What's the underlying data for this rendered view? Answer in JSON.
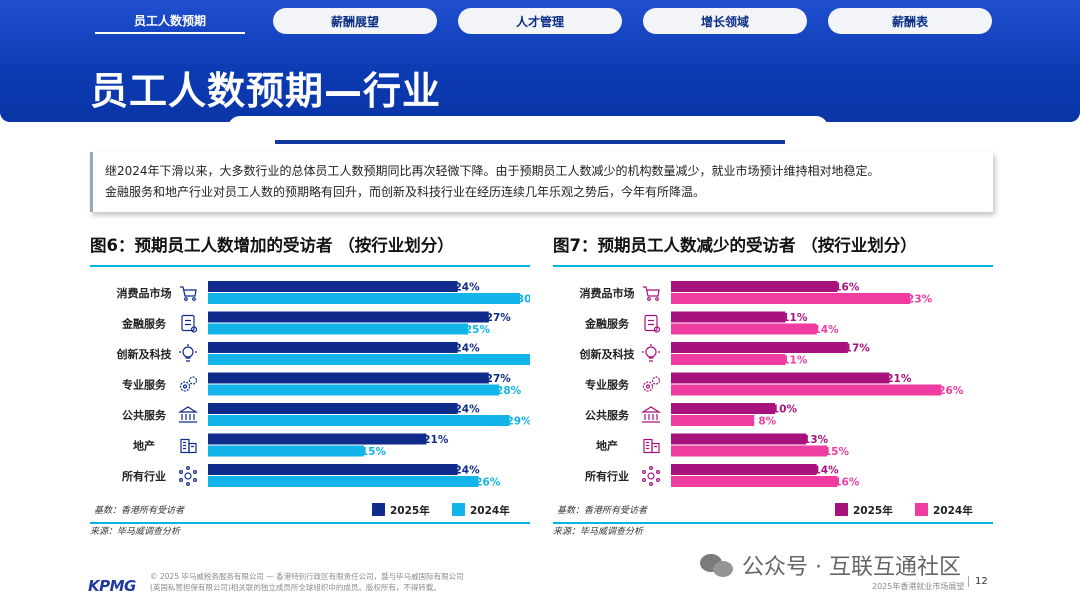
{
  "nav": {
    "tabs": [
      {
        "label": "员工人数预期"
      },
      {
        "label": "薪酬展望"
      },
      {
        "label": "人才管理"
      },
      {
        "label": "增长领域"
      },
      {
        "label": "薪酬表"
      }
    ]
  },
  "page": {
    "title": "员工人数预期—行业",
    "intro_line1": "继2024年下滑以来，大多数行业的总体员工人数预期同比再次轻微下降。由于预期员工人数减少的机构数量减少，就业市场预计维持相对地稳定。",
    "intro_line2": "金融服务和地产行业对员工人数的预期略有回升，而创新及科技行业在经历连续几年乐观之势后，今年有所降温。"
  },
  "chart_data": [
    {
      "type": "bar",
      "title": "图6：预期员工人数增加的受访者 （按行业划分）",
      "categories": [
        "消费品市场",
        "金融服务",
        "创新及科技",
        "专业服务",
        "公共服务",
        "地产",
        "所有行业"
      ],
      "icons": [
        "cart-icon",
        "finance-icon",
        "bulb-icon",
        "gears-icon",
        "bank-icon",
        "building-icon",
        "network-icon"
      ],
      "series": [
        {
          "name": "2025年",
          "values": [
            24,
            27,
            24,
            27,
            24,
            21,
            24
          ],
          "color": "#0f2b8c"
        },
        {
          "name": "2024年",
          "values": [
            30,
            25,
            32,
            28,
            29,
            15,
            26
          ],
          "color": "#12b4ea"
        }
      ],
      "base_note": "基数：香港所有受访者",
      "source": "来源：毕马威调查分析",
      "xlim": [
        0,
        32
      ]
    },
    {
      "type": "bar",
      "title": "图7：预期员工人数减少的受访者 （按行业划分）",
      "categories": [
        "消费品市场",
        "金融服务",
        "创新及科技",
        "专业服务",
        "公共服务",
        "地产",
        "所有行业"
      ],
      "icons": [
        "cart-icon",
        "finance-icon",
        "bulb-icon",
        "gears-icon",
        "bank-icon",
        "building-icon",
        "network-icon"
      ],
      "series": [
        {
          "name": "2025年",
          "values": [
            16,
            11,
            17,
            21,
            10,
            13,
            14
          ],
          "color": "#a8127d"
        },
        {
          "name": "2024年",
          "values": [
            23,
            14,
            11,
            26,
            8,
            15,
            16
          ],
          "color": "#ee3ca0"
        }
      ],
      "base_note": "基数：香港所有受访者",
      "source": "来源：毕马威调查分析",
      "xlim": [
        0,
        26
      ]
    }
  ],
  "footer": {
    "brand": "KPMG",
    "legal_line1": "© 2025 毕马威税务服务有限公司 — 香港特别行政区有限责任公司，暨与毕马威国际有限公司",
    "legal_line2": "(英国私营担保有限公司)相关联的独立成员所全球组织中的成员。版权所有，不得转载。",
    "report_name": "2025年香港就业市场展望",
    "page_number": "12"
  },
  "watermark": {
    "text": "公众号 · 互联互通社区"
  }
}
